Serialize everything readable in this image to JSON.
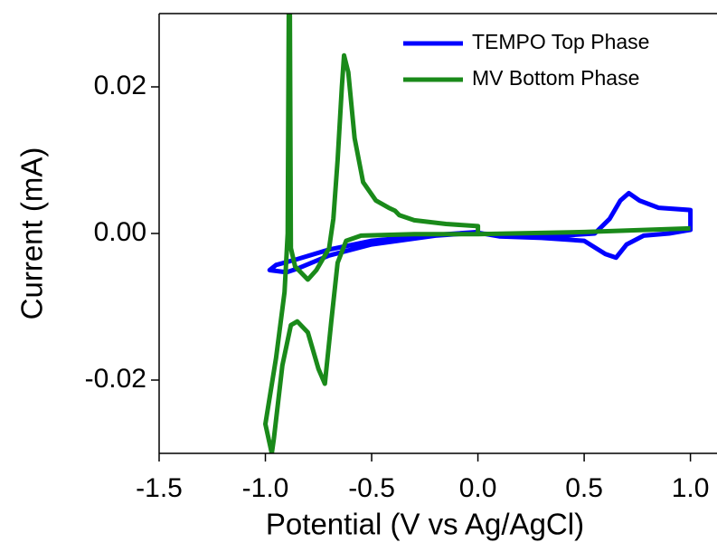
{
  "chart_data": {
    "type": "line",
    "xlabel": "Potential (V vs Ag/AgCl)",
    "ylabel": "Current (mA)",
    "xlim": [
      -1.5,
      1.125
    ],
    "ylim": [
      -0.03,
      0.03
    ],
    "xticks": [
      -1.5,
      {
        "value": -1.0,
        "label": "-1.0"
      },
      -0.5,
      {
        "value": 0,
        "label": "0.0"
      },
      0.5,
      {
        "value": 1.0,
        "label": "1.0"
      }
    ],
    "yticks": [
      -0.02,
      {
        "value": 0,
        "label": "0.00"
      },
      0.02
    ],
    "legend": "upper right",
    "series": [
      {
        "name": "TEMPO Top Phase",
        "color": "#0000ff",
        "x": [
          0.0,
          0.2,
          0.4,
          0.55,
          0.62,
          0.67,
          0.71,
          0.76,
          0.85,
          1.0,
          1.0,
          0.9,
          0.78,
          0.7,
          0.65,
          0.6,
          0.5,
          0.3,
          0.1,
          0.0,
          -0.2,
          -0.5,
          -0.7,
          -0.85,
          -0.9,
          -0.98,
          -0.95,
          -0.85,
          -0.7,
          -0.5,
          -0.2,
          0.0
        ],
        "values": [
          0.0,
          -0.0003,
          -0.0003,
          0.0,
          0.002,
          0.0045,
          0.0055,
          0.0045,
          0.0035,
          0.0032,
          0.0005,
          0.0,
          -0.0003,
          -0.0015,
          -0.0033,
          -0.0028,
          -0.001,
          -0.0006,
          -0.0004,
          0.0001,
          -0.0003,
          -0.0015,
          -0.003,
          -0.0048,
          -0.0053,
          -0.005,
          -0.0043,
          -0.0035,
          -0.0022,
          -0.001,
          -0.0002,
          0.0002
        ]
      },
      {
        "name": "MV Bottom Phase",
        "color": "#1a8a1a",
        "x": [
          1.0,
          0.5,
          0.0,
          -0.3,
          -0.55,
          -0.62,
          -0.66,
          -0.69,
          -0.72,
          -0.75,
          -0.8,
          -0.85,
          -0.88,
          -0.92,
          -0.96,
          -0.97,
          -1.0,
          -0.95,
          -0.91,
          -0.895,
          -0.89,
          -0.885,
          -0.88,
          -0.86,
          -0.8,
          -0.76,
          -0.7,
          -0.68,
          -0.66,
          -0.64,
          -0.63,
          -0.61,
          -0.58,
          -0.54,
          -0.48,
          -0.42,
          -0.39,
          -0.37,
          -0.3,
          -0.15,
          0.0,
          0.0
        ],
        "values": [
          0.0007,
          0.0002,
          -0.0001,
          -0.0001,
          -0.0003,
          -0.001,
          -0.004,
          -0.012,
          -0.0205,
          -0.0185,
          -0.0135,
          -0.012,
          -0.0125,
          -0.018,
          -0.028,
          -0.03,
          -0.026,
          -0.017,
          -0.008,
          0.0,
          0.03,
          0.03,
          -0.002,
          -0.0045,
          -0.0063,
          -0.005,
          -0.002,
          0.002,
          0.01,
          0.02,
          0.0243,
          0.022,
          0.013,
          0.007,
          0.0045,
          0.0035,
          0.0031,
          0.0025,
          0.0018,
          0.0013,
          0.001,
          0.0
        ]
      }
    ]
  }
}
